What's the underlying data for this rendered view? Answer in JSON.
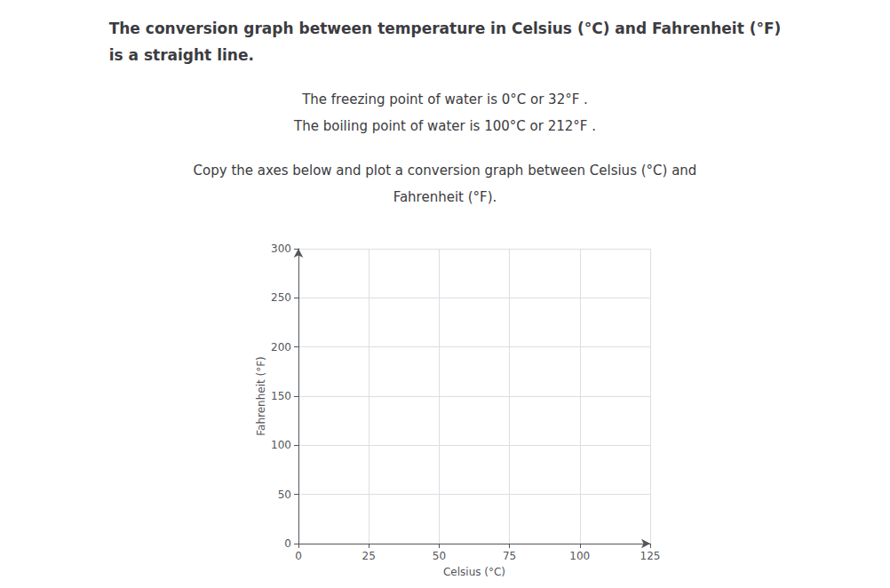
{
  "chart_data": {
    "type": "line",
    "title": "The conversion graph between temperature in Celsius (°C) and Fahrenheit (°F)\nis a straight line.",
    "subtitle": "The freezing point of water is 0°C or 32°F .\nThe boiling point of water is 100°C or 212°F .",
    "annotations": [
      "Copy the axes below and plot a conversion graph between Celsius (°C) and",
      "Fahrenheit (°F)."
    ],
    "x_label": "Celsius (°C)",
    "y_label": "Fahrenheit (°F)",
    "x": [],
    "series": [],
    "xlim": [
      0,
      125
    ],
    "xticks": [
      0,
      25,
      50,
      75,
      100,
      125
    ],
    "ylim": [
      0,
      300
    ],
    "yticks": [
      0,
      50,
      100,
      150,
      200,
      250,
      300
    ],
    "grid": true
  }
}
